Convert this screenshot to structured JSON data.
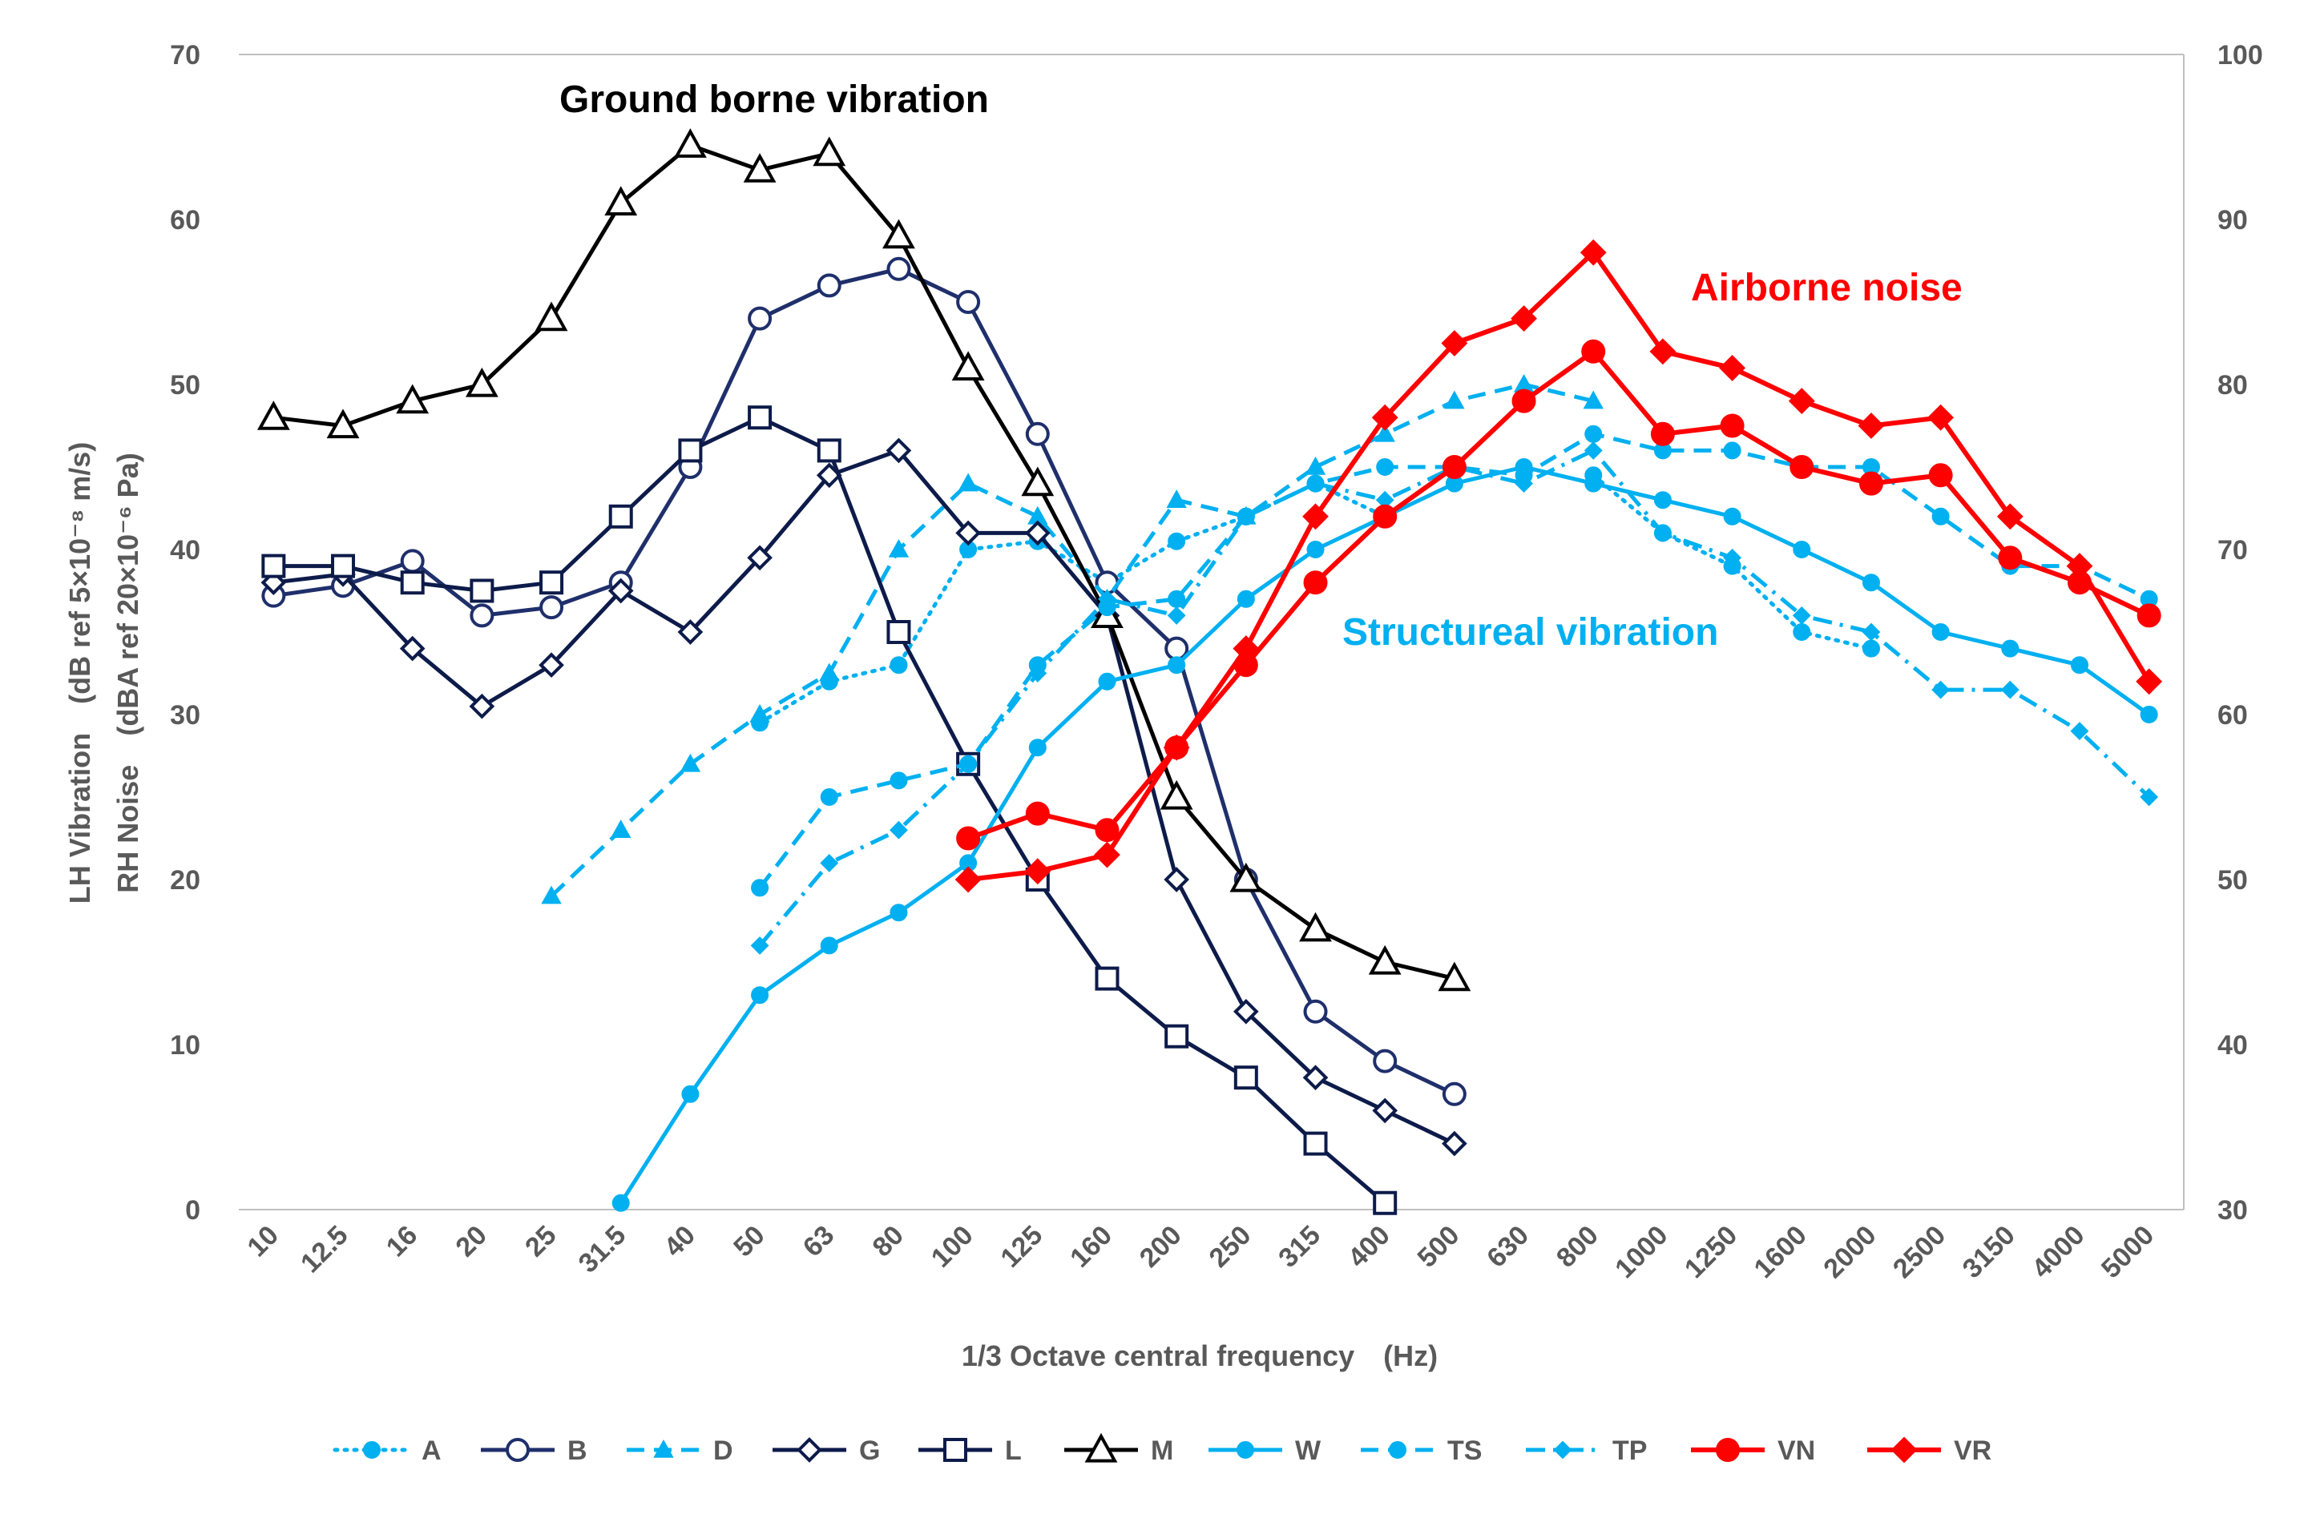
{
  "chart_data": {
    "type": "line",
    "xlabel": "1/3 Octave central frequency　(Hz)",
    "ylabel_left": [
      "LH Vibration　(dB ref 5×10⁻⁸ m/s)",
      "RH Noise　(dBA ref 20×10⁻⁶ Pa)"
    ],
    "categories": [
      "10",
      "12.5",
      "16",
      "20",
      "25",
      "31.5",
      "40",
      "50",
      "63",
      "80",
      "100",
      "125",
      "160",
      "200",
      "250",
      "315",
      "400",
      "500",
      "630",
      "800",
      "1000",
      "1250",
      "1600",
      "2000",
      "2500",
      "3150",
      "4000",
      "5000"
    ],
    "y_left": {
      "min": 0,
      "max": 70,
      "ticks": [
        "0",
        "10",
        "20",
        "30",
        "40",
        "50",
        "60",
        "70"
      ]
    },
    "y_right": {
      "min": 30,
      "max": 100,
      "ticks": [
        "30",
        "40",
        "50",
        "60",
        "70",
        "80",
        "90",
        "100"
      ]
    },
    "annotations": [
      {
        "text": "Ground borne vibration",
        "color": "#000000"
      },
      {
        "text": "Airborne noise",
        "color": "#ff0000"
      },
      {
        "text": "Structureal vibration",
        "color": "#00b0f0"
      }
    ],
    "series": [
      {
        "name": "A",
        "axis": "left",
        "color": "#00b0f0",
        "dash": "dot",
        "marker": "circle-filled",
        "values": [
          null,
          null,
          null,
          null,
          null,
          null,
          null,
          29.5,
          32,
          33,
          40,
          40.5,
          38,
          40.5,
          42,
          44,
          42,
          null,
          null,
          null,
          null,
          null,
          null,
          null,
          null,
          null,
          null,
          null
        ]
      },
      {
        "name": "A",
        "axis": "left",
        "color": "#00b0f0",
        "dash": "dot",
        "marker": "circle-filled",
        "legend": false,
        "values": [
          null,
          null,
          null,
          null,
          null,
          null,
          null,
          null,
          null,
          null,
          null,
          null,
          null,
          null,
          null,
          null,
          null,
          null,
          null,
          44.5,
          41,
          39,
          35,
          34,
          null,
          null,
          null,
          null
        ]
      },
      {
        "name": "B",
        "axis": "left",
        "color": "#1f2f6b",
        "dash": "solid",
        "marker": "circle-open",
        "values": [
          37.2,
          37.8,
          39.3,
          36,
          36.5,
          38,
          45,
          54,
          56,
          57,
          55,
          47,
          38,
          34,
          20,
          12,
          9,
          7,
          null,
          null,
          null,
          null,
          null,
          null,
          null,
          null,
          null,
          null
        ]
      },
      {
        "name": "D",
        "axis": "left",
        "color": "#00b0f0",
        "dash": "dash",
        "marker": "triangle-filled",
        "values": [
          null,
          null,
          null,
          null,
          19,
          23,
          27,
          30,
          32.5,
          40,
          44,
          42,
          37,
          43,
          42,
          45,
          47,
          49,
          50,
          49,
          null,
          null,
          null,
          null,
          null,
          null,
          null,
          null
        ]
      },
      {
        "name": "G",
        "axis": "left",
        "color": "#0d1b4a",
        "dash": "solid",
        "marker": "diamond-open",
        "values": [
          38,
          38.5,
          34,
          30.5,
          33,
          37.5,
          35,
          39.5,
          44.5,
          46,
          41,
          41,
          36,
          20,
          12,
          8,
          6,
          4,
          null,
          null,
          null,
          null,
          null,
          null,
          null,
          null,
          null,
          null
        ]
      },
      {
        "name": "L",
        "axis": "left",
        "color": "#0d1b4a",
        "dash": "solid",
        "marker": "square-open",
        "values": [
          39,
          39,
          38,
          37.5,
          38,
          42,
          46,
          48,
          46,
          35,
          27,
          20,
          14,
          10.5,
          8,
          4,
          0.4,
          null,
          null,
          null,
          null,
          null,
          null,
          null,
          null,
          null,
          null,
          null
        ]
      },
      {
        "name": "M",
        "axis": "left",
        "color": "#000000",
        "dash": "solid",
        "marker": "triangle-open",
        "values": [
          48,
          47.5,
          49,
          50,
          54,
          61,
          64.5,
          63,
          64,
          59,
          51,
          44,
          36,
          25,
          20,
          17,
          15,
          14,
          null,
          null,
          null,
          null,
          null,
          null,
          null,
          null,
          null,
          null
        ]
      },
      {
        "name": "W",
        "axis": "left",
        "color": "#00b0f0",
        "dash": "solid",
        "marker": "circle-filled",
        "values": [
          null,
          null,
          null,
          null,
          null,
          0.4,
          7,
          13,
          16,
          18,
          21,
          28,
          32,
          33,
          37,
          40,
          42,
          44,
          45,
          44,
          43,
          42,
          40,
          38,
          35,
          34,
          33,
          30
        ]
      },
      {
        "name": "TS",
        "axis": "left",
        "color": "#00b0f0",
        "dash": "dash",
        "marker": "circle-filled",
        "values": [
          null,
          null,
          null,
          null,
          null,
          null,
          null,
          19.5,
          25,
          26,
          27,
          33,
          36.5,
          37,
          42,
          44,
          45,
          45,
          44.5,
          47,
          46,
          46,
          45,
          45,
          42,
          39,
          39,
          37
        ]
      },
      {
        "name": "TP",
        "axis": "left",
        "color": "#00b0f0",
        "dash": "dashdot",
        "marker": "diamond-filled",
        "values": [
          null,
          null,
          null,
          null,
          null,
          null,
          null,
          16,
          21,
          23,
          27,
          32.5,
          37,
          36,
          42,
          44,
          43,
          45,
          44,
          46,
          41,
          39.5,
          36,
          35,
          31.5,
          31.5,
          29,
          25
        ]
      },
      {
        "name": "VN",
        "axis": "right",
        "color": "#ff0000",
        "dash": "solid",
        "marker": "circle-filled",
        "values": [
          null,
          null,
          null,
          null,
          null,
          null,
          null,
          null,
          null,
          null,
          52.5,
          54,
          53,
          58,
          63,
          68,
          72,
          75,
          79,
          82,
          77,
          77.5,
          75,
          74,
          74.5,
          69.5,
          68,
          66
        ]
      },
      {
        "name": "VR",
        "axis": "right",
        "color": "#ff0000",
        "dash": "solid",
        "marker": "diamond-filled",
        "values": [
          null,
          null,
          null,
          null,
          null,
          null,
          null,
          null,
          null,
          null,
          50,
          50.5,
          51.5,
          58,
          64,
          72,
          78,
          82.5,
          84,
          88,
          82,
          81,
          79,
          77.5,
          78,
          72,
          69,
          62
        ]
      }
    ]
  }
}
